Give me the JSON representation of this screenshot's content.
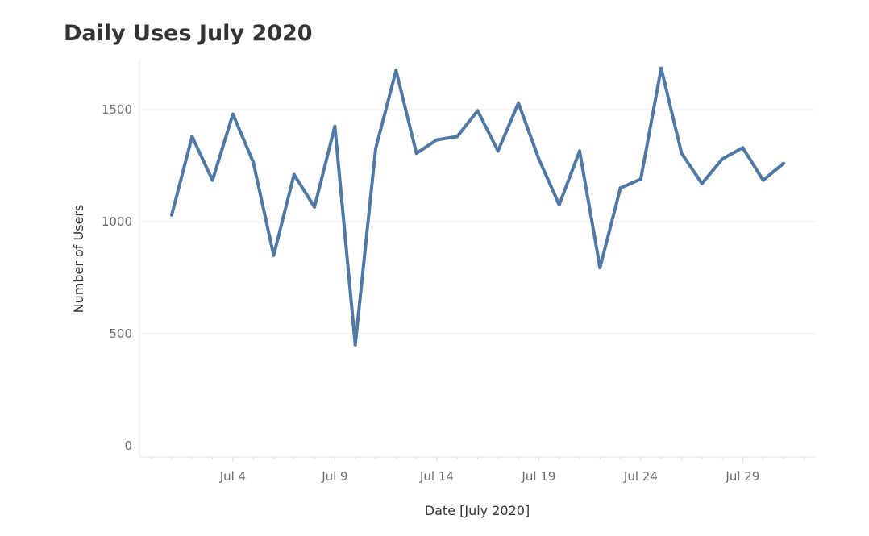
{
  "chart_data": {
    "type": "line",
    "title": "Daily Uses July 2020",
    "xlabel": "Date [July 2020]",
    "ylabel": "Number of Users",
    "x": [
      1,
      2,
      3,
      4,
      5,
      6,
      7,
      8,
      9,
      10,
      11,
      12,
      13,
      14,
      15,
      16,
      17,
      18,
      19,
      20,
      21,
      22,
      23,
      24,
      25,
      26,
      27,
      28,
      29,
      30,
      31
    ],
    "values": [
      1030,
      1380,
      1185,
      1480,
      1265,
      850,
      1210,
      1065,
      1425,
      450,
      1325,
      1675,
      1305,
      1365,
      1380,
      1495,
      1315,
      1530,
      1280,
      1075,
      1315,
      795,
      1150,
      1190,
      1685,
      1305,
      1170,
      1280,
      1330,
      1185,
      1260
    ],
    "x_ticks": [
      {
        "day": 4,
        "label": "Jul 4"
      },
      {
        "day": 9,
        "label": "Jul 9"
      },
      {
        "day": 14,
        "label": "Jul 14"
      },
      {
        "day": 19,
        "label": "Jul 19"
      },
      {
        "day": 24,
        "label": "Jul 24"
      },
      {
        "day": 29,
        "label": "Jul 29"
      }
    ],
    "y_ticks": [
      0,
      500,
      1000,
      1500
    ],
    "xlim": [
      1,
      31
    ],
    "ylim": [
      0,
      1750
    ],
    "grid": "horizontal",
    "line_color": "#4e79a7"
  }
}
